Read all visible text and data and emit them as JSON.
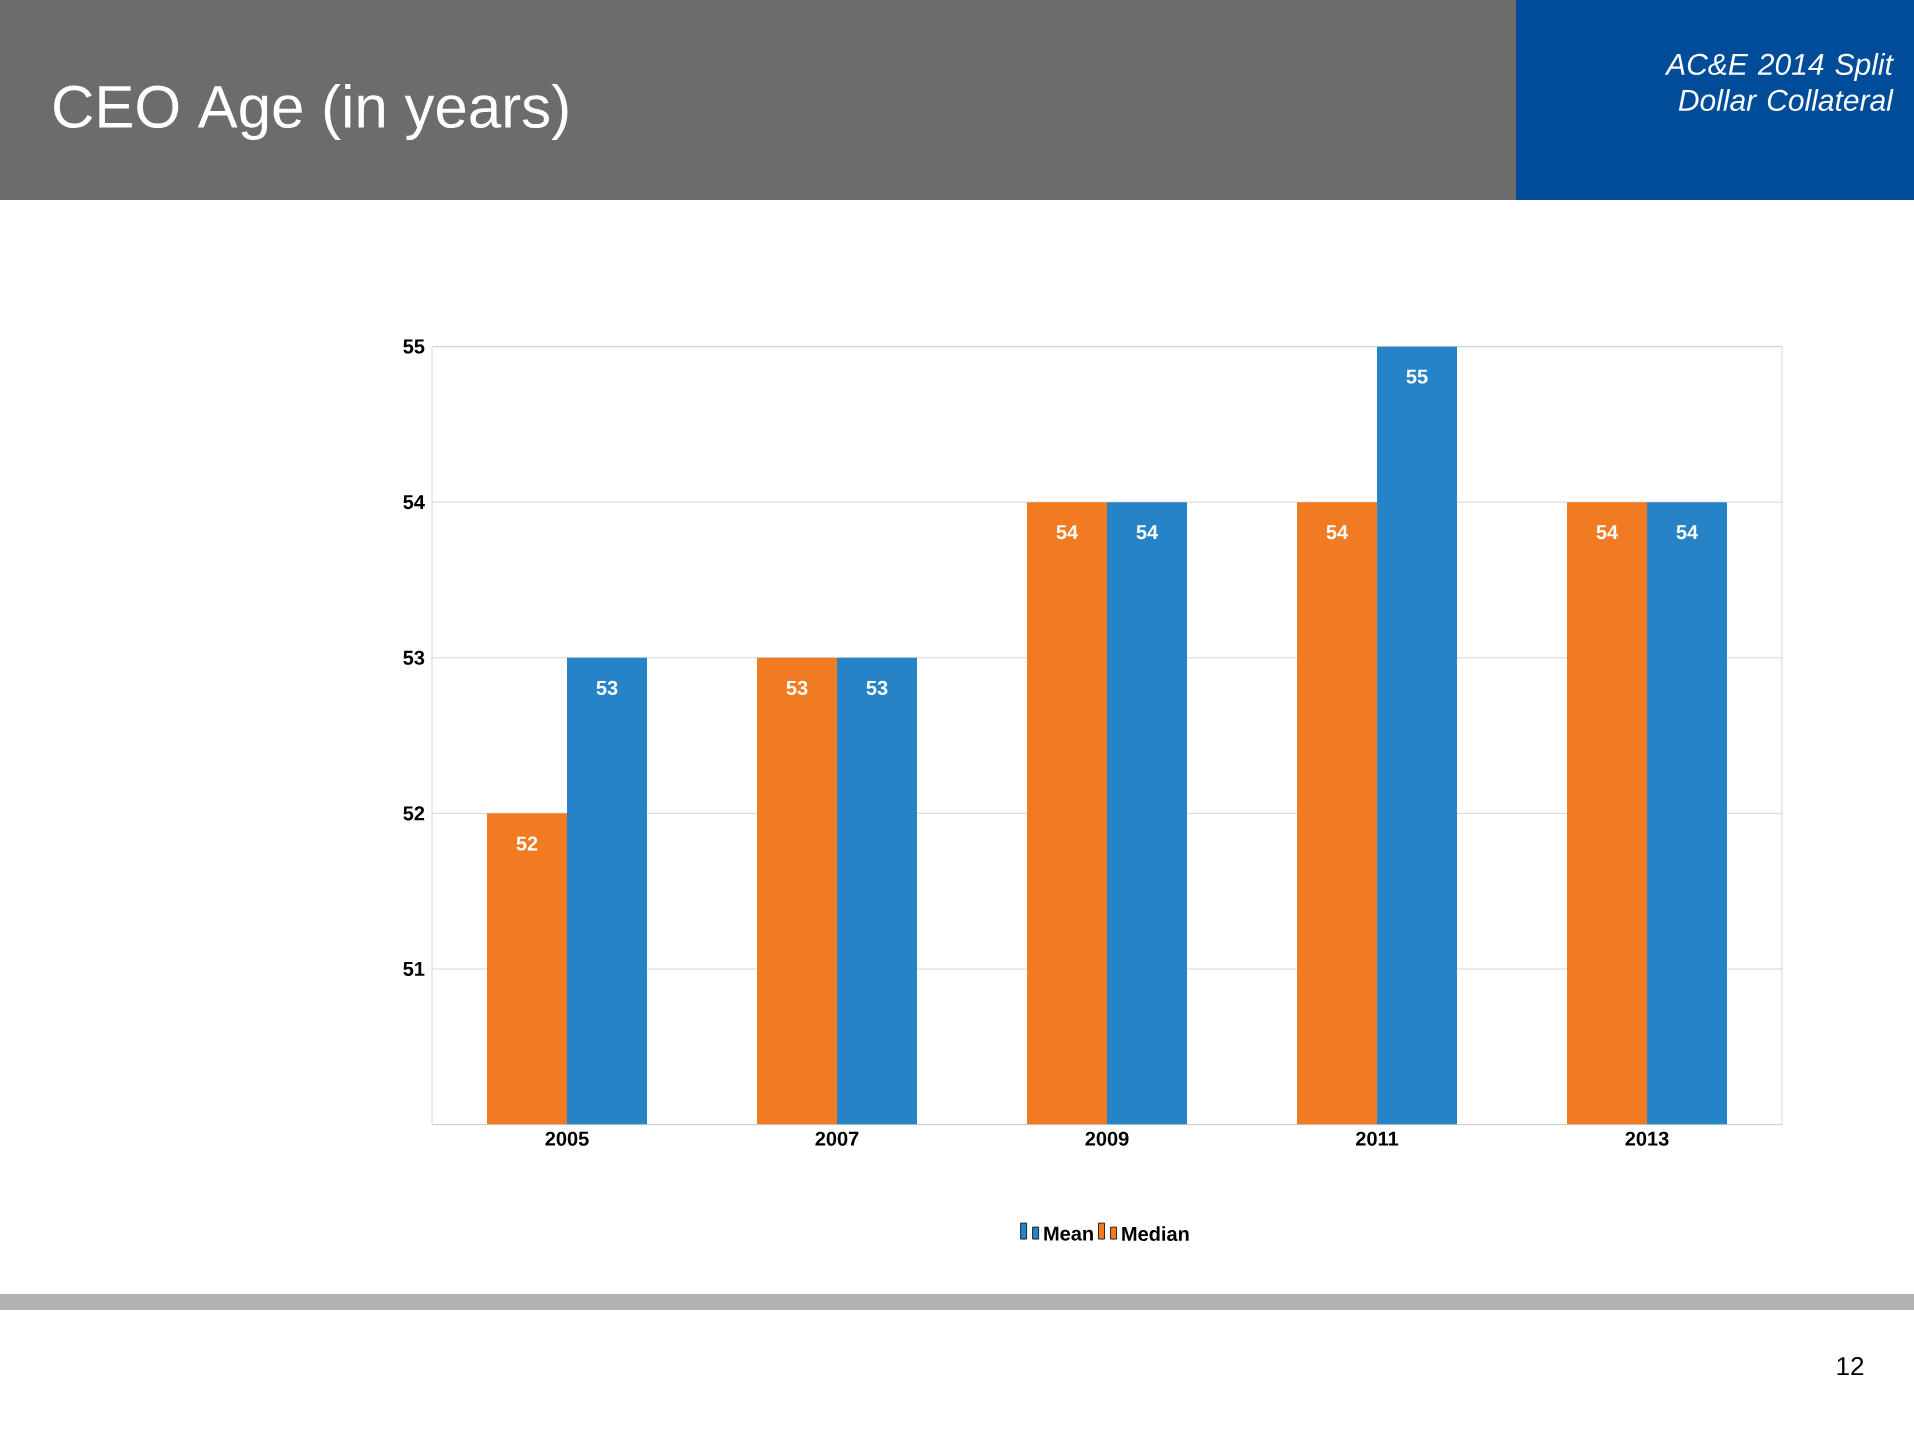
{
  "chart_data": {
    "type": "bar",
    "title": "CEO Age (in years)",
    "subtitle": "AC&E 2014 Split Dollar Collateral",
    "categories": [
      "2005",
      "2007",
      "2009",
      "2011",
      "2013"
    ],
    "series": [
      {
        "name": "Median",
        "color": "#f07b22",
        "values": [
          52,
          53,
          54,
          54,
          54
        ]
      },
      {
        "name": "Mean",
        "color": "#2683c6",
        "values": [
          53,
          53,
          54,
          55,
          54
        ]
      }
    ],
    "ylim": [
      50,
      55
    ],
    "yticks": [
      {
        "value": 50,
        "label": null
      },
      51,
      52,
      53,
      54,
      55
    ],
    "grid": "y",
    "legend": "bottom",
    "data_labels": true,
    "annotations": [
      "12"
    ]
  }
}
